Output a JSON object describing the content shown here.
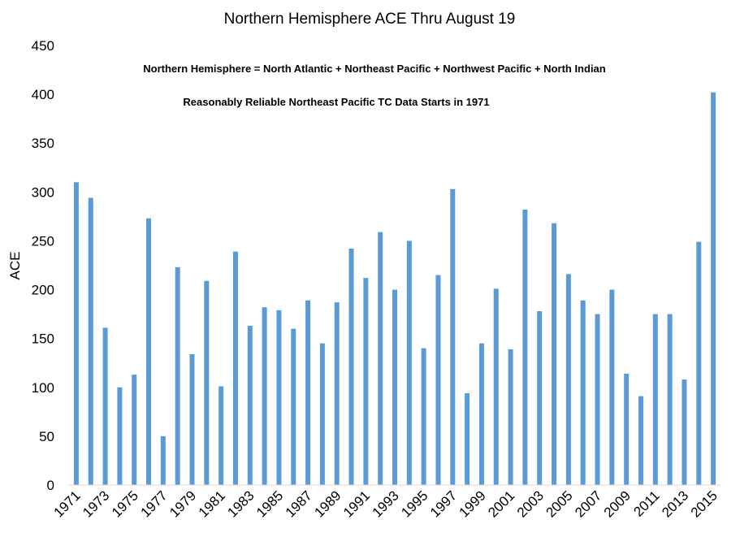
{
  "chart_data": {
    "type": "bar",
    "title": "Northern Hemisphere  ACE Thru August 19",
    "ylabel": "ACE",
    "xlabel": "",
    "annotations": [
      "Northern Hemisphere = North Atlantic + Northeast Pacific + Northwest Pacific + North Indian",
      "Reasonably Reliable Northeast Pacific TC Data Starts in 1971"
    ],
    "ylim": [
      0,
      450
    ],
    "yticks": [
      0,
      50,
      100,
      150,
      200,
      250,
      300,
      350,
      400,
      450
    ],
    "grid": false,
    "bar_color": "#5b9bd5",
    "categories": [
      "1971",
      "1972",
      "1973",
      "1974",
      "1975",
      "1976",
      "1977",
      "1978",
      "1979",
      "1980",
      "1981",
      "1982",
      "1983",
      "1984",
      "1985",
      "1986",
      "1987",
      "1988",
      "1989",
      "1990",
      "1991",
      "1992",
      "1993",
      "1994",
      "1995",
      "1996",
      "1997",
      "1998",
      "1999",
      "2000",
      "2001",
      "2002",
      "2003",
      "2004",
      "2005",
      "2006",
      "2007",
      "2008",
      "2009",
      "2010",
      "2011",
      "2012",
      "2013",
      "2014",
      "2015"
    ],
    "xtick_labels": [
      "1971",
      "1973",
      "1975",
      "1977",
      "1979",
      "1981",
      "1983",
      "1985",
      "1987",
      "1989",
      "1991",
      "1993",
      "1995",
      "1997",
      "1999",
      "2001",
      "2003",
      "2005",
      "2007",
      "2009",
      "2011",
      "2013",
      "2015"
    ],
    "values": [
      310,
      294,
      161,
      100,
      113,
      273,
      50,
      223,
      134,
      209,
      101,
      239,
      163,
      182,
      179,
      160,
      189,
      145,
      187,
      242,
      212,
      259,
      200,
      250,
      140,
      215,
      303,
      94,
      145,
      201,
      139,
      282,
      178,
      268,
      216,
      189,
      175,
      200,
      114,
      91,
      175,
      175,
      108,
      249,
      402
    ]
  }
}
